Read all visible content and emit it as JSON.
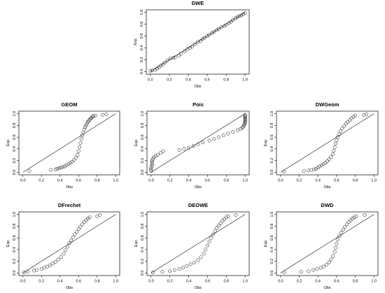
{
  "chart_data": [
    {
      "type": "scatter",
      "title": "DWE",
      "xlabel": "Obs",
      "ylabel": "Exp",
      "xlim": [
        0,
        1
      ],
      "ylim": [
        0,
        1
      ],
      "grid": false,
      "reference_line": "y = x",
      "xticks": [
        "0.0",
        "0.2",
        "0.4",
        "0.6",
        "0.8",
        "1.0"
      ],
      "yticks": [
        "0.0",
        "0.2",
        "0.4",
        "0.6",
        "0.8",
        "1.0"
      ],
      "points": [
        [
          0.0,
          0.01
        ],
        [
          0.02,
          0.02
        ],
        [
          0.05,
          0.03
        ],
        [
          0.07,
          0.05
        ],
        [
          0.09,
          0.07
        ],
        [
          0.11,
          0.1
        ],
        [
          0.13,
          0.12
        ],
        [
          0.15,
          0.15
        ],
        [
          0.18,
          0.19
        ],
        [
          0.21,
          0.22
        ],
        [
          0.24,
          0.23
        ],
        [
          0.26,
          0.24
        ],
        [
          0.3,
          0.27
        ],
        [
          0.32,
          0.3
        ],
        [
          0.36,
          0.34
        ],
        [
          0.39,
          0.38
        ],
        [
          0.42,
          0.4
        ],
        [
          0.44,
          0.42
        ],
        [
          0.47,
          0.46
        ],
        [
          0.5,
          0.5
        ],
        [
          0.53,
          0.52
        ],
        [
          0.55,
          0.55
        ],
        [
          0.57,
          0.57
        ],
        [
          0.6,
          0.6
        ],
        [
          0.62,
          0.62
        ],
        [
          0.65,
          0.65
        ],
        [
          0.67,
          0.67
        ],
        [
          0.7,
          0.7
        ],
        [
          0.72,
          0.72
        ],
        [
          0.75,
          0.75
        ],
        [
          0.78,
          0.77
        ],
        [
          0.8,
          0.79
        ],
        [
          0.83,
          0.82
        ],
        [
          0.85,
          0.84
        ],
        [
          0.87,
          0.87
        ],
        [
          0.9,
          0.9
        ],
        [
          0.92,
          0.92
        ],
        [
          0.94,
          0.94
        ],
        [
          0.96,
          0.95
        ],
        [
          0.98,
          0.97
        ],
        [
          1.0,
          0.99
        ]
      ]
    },
    {
      "type": "scatter",
      "title": "GEOM",
      "xlabel": "Obs",
      "ylabel": "Exp",
      "xlim": [
        0,
        1
      ],
      "ylim": [
        0,
        1
      ],
      "grid": false,
      "reference_line": "y = x",
      "xticks": [
        "0.0",
        "0.2",
        "0.4",
        "0.6",
        "0.8",
        "1.0"
      ],
      "yticks": [
        "0.0",
        "0.2",
        "0.4",
        "0.6",
        "0.8",
        "1.0"
      ],
      "points": [
        [
          0.07,
          0.02
        ],
        [
          0.3,
          0.04
        ],
        [
          0.35,
          0.05
        ],
        [
          0.37,
          0.06
        ],
        [
          0.39,
          0.07
        ],
        [
          0.41,
          0.08
        ],
        [
          0.43,
          0.09
        ],
        [
          0.45,
          0.1
        ],
        [
          0.47,
          0.12
        ],
        [
          0.49,
          0.14
        ],
        [
          0.51,
          0.16
        ],
        [
          0.53,
          0.18
        ],
        [
          0.55,
          0.21
        ],
        [
          0.57,
          0.25
        ],
        [
          0.59,
          0.3
        ],
        [
          0.6,
          0.36
        ],
        [
          0.61,
          0.43
        ],
        [
          0.62,
          0.5
        ],
        [
          0.63,
          0.57
        ],
        [
          0.64,
          0.63
        ],
        [
          0.65,
          0.68
        ],
        [
          0.66,
          0.73
        ],
        [
          0.67,
          0.77
        ],
        [
          0.68,
          0.8
        ],
        [
          0.69,
          0.83
        ],
        [
          0.7,
          0.86
        ],
        [
          0.71,
          0.88
        ],
        [
          0.72,
          0.9
        ],
        [
          0.73,
          0.92
        ],
        [
          0.74,
          0.93
        ],
        [
          0.75,
          0.95
        ],
        [
          0.76,
          0.96
        ],
        [
          0.78,
          0.97
        ],
        [
          0.86,
          0.98
        ],
        [
          0.9,
          0.99
        ]
      ]
    },
    {
      "type": "scatter",
      "title": "Pois",
      "xlabel": "Obs",
      "ylabel": "Exp",
      "xlim": [
        0,
        1
      ],
      "ylim": [
        0,
        1
      ],
      "grid": false,
      "reference_line": "y = x",
      "xticks": [
        "0.0",
        "0.2",
        "0.4",
        "0.6",
        "0.8",
        "1.0"
      ],
      "yticks": [
        "0.0",
        "0.2",
        "0.4",
        "0.6",
        "0.8",
        "1.0"
      ],
      "points": [
        [
          0.0,
          0.02
        ],
        [
          0.0,
          0.05
        ],
        [
          0.0,
          0.08
        ],
        [
          0.01,
          0.11
        ],
        [
          0.01,
          0.14
        ],
        [
          0.01,
          0.17
        ],
        [
          0.01,
          0.2
        ],
        [
          0.02,
          0.23
        ],
        [
          0.03,
          0.26
        ],
        [
          0.05,
          0.28
        ],
        [
          0.07,
          0.3
        ],
        [
          0.1,
          0.33
        ],
        [
          0.13,
          0.36
        ],
        [
          0.3,
          0.38
        ],
        [
          0.35,
          0.4
        ],
        [
          0.4,
          0.42
        ],
        [
          0.45,
          0.45
        ],
        [
          0.5,
          0.48
        ],
        [
          0.55,
          0.51
        ],
        [
          0.62,
          0.54
        ],
        [
          0.67,
          0.57
        ],
        [
          0.72,
          0.6
        ],
        [
          0.77,
          0.63
        ],
        [
          0.82,
          0.66
        ],
        [
          0.87,
          0.69
        ],
        [
          0.92,
          0.72
        ],
        [
          0.95,
          0.74
        ],
        [
          0.97,
          0.76
        ],
        [
          0.98,
          0.78
        ],
        [
          0.99,
          0.8
        ],
        [
          0.99,
          0.82
        ],
        [
          1.0,
          0.84
        ],
        [
          1.0,
          0.86
        ],
        [
          1.0,
          0.88
        ],
        [
          1.0,
          0.9
        ],
        [
          1.0,
          0.92
        ],
        [
          1.0,
          0.94
        ],
        [
          1.0,
          0.96
        ],
        [
          1.0,
          0.98
        ]
      ]
    },
    {
      "type": "scatter",
      "title": "DWGeom",
      "xlabel": "Obs",
      "ylabel": "Exp",
      "xlim": [
        0,
        1
      ],
      "ylim": [
        0,
        1
      ],
      "grid": false,
      "reference_line": "y = x",
      "xticks": [
        "0.0",
        "0.2",
        "0.4",
        "0.6",
        "0.8",
        "1.0"
      ],
      "yticks": [
        "0.0",
        "0.2",
        "0.4",
        "0.6",
        "0.8",
        "1.0"
      ],
      "points": [
        [
          0.04,
          0.01
        ],
        [
          0.25,
          0.02
        ],
        [
          0.3,
          0.03
        ],
        [
          0.33,
          0.04
        ],
        [
          0.36,
          0.05
        ],
        [
          0.38,
          0.06
        ],
        [
          0.4,
          0.08
        ],
        [
          0.42,
          0.1
        ],
        [
          0.44,
          0.12
        ],
        [
          0.46,
          0.14
        ],
        [
          0.48,
          0.16
        ],
        [
          0.5,
          0.19
        ],
        [
          0.52,
          0.22
        ],
        [
          0.54,
          0.26
        ],
        [
          0.56,
          0.31
        ],
        [
          0.57,
          0.37
        ],
        [
          0.58,
          0.43
        ],
        [
          0.59,
          0.49
        ],
        [
          0.6,
          0.55
        ],
        [
          0.61,
          0.6
        ],
        [
          0.63,
          0.65
        ],
        [
          0.64,
          0.7
        ],
        [
          0.66,
          0.75
        ],
        [
          0.68,
          0.79
        ],
        [
          0.7,
          0.83
        ],
        [
          0.72,
          0.86
        ],
        [
          0.74,
          0.89
        ],
        [
          0.76,
          0.92
        ],
        [
          0.78,
          0.95
        ],
        [
          0.8,
          0.97
        ],
        [
          0.89,
          0.98
        ],
        [
          0.92,
          0.99
        ]
      ]
    },
    {
      "type": "scatter",
      "title": "DFrechet",
      "xlabel": "Obs",
      "ylabel": "Exp",
      "xlim": [
        0,
        1
      ],
      "ylim": [
        0,
        1
      ],
      "grid": false,
      "reference_line": "y = x",
      "xticks": [
        "0.0",
        "0.2",
        "0.4",
        "0.6",
        "0.8",
        "1.0"
      ],
      "yticks": [
        "0.0",
        "0.2",
        "0.4",
        "0.6",
        "0.8",
        "1.0"
      ],
      "points": [
        [
          0.01,
          0.01
        ],
        [
          0.05,
          0.02
        ],
        [
          0.12,
          0.04
        ],
        [
          0.15,
          0.05
        ],
        [
          0.2,
          0.07
        ],
        [
          0.23,
          0.09
        ],
        [
          0.26,
          0.11
        ],
        [
          0.29,
          0.13
        ],
        [
          0.32,
          0.16
        ],
        [
          0.35,
          0.19
        ],
        [
          0.38,
          0.23
        ],
        [
          0.41,
          0.27
        ],
        [
          0.44,
          0.33
        ],
        [
          0.46,
          0.39
        ],
        [
          0.48,
          0.45
        ],
        [
          0.5,
          0.51
        ],
        [
          0.52,
          0.56
        ],
        [
          0.54,
          0.61
        ],
        [
          0.56,
          0.66
        ],
        [
          0.58,
          0.7
        ],
        [
          0.6,
          0.75
        ],
        [
          0.62,
          0.79
        ],
        [
          0.64,
          0.83
        ],
        [
          0.66,
          0.87
        ],
        [
          0.68,
          0.9
        ],
        [
          0.7,
          0.93
        ],
        [
          0.72,
          0.95
        ],
        [
          0.8,
          0.97
        ],
        [
          0.83,
          0.99
        ]
      ]
    },
    {
      "type": "scatter",
      "title": "DEOWE",
      "xlabel": "Obs",
      "ylabel": "Exp",
      "xlim": [
        0,
        1
      ],
      "ylim": [
        0,
        1
      ],
      "grid": false,
      "reference_line": "y = x",
      "xticks": [
        "0.0",
        "0.2",
        "0.4",
        "0.6",
        "0.8",
        "1.0"
      ],
      "yticks": [
        "0.0",
        "0.2",
        "0.4",
        "0.6",
        "0.8",
        "1.0"
      ],
      "points": [
        [
          0.02,
          0.01
        ],
        [
          0.12,
          0.02
        ],
        [
          0.2,
          0.03
        ],
        [
          0.25,
          0.05
        ],
        [
          0.3,
          0.07
        ],
        [
          0.34,
          0.09
        ],
        [
          0.38,
          0.12
        ],
        [
          0.42,
          0.15
        ],
        [
          0.46,
          0.18
        ],
        [
          0.5,
          0.22
        ],
        [
          0.53,
          0.27
        ],
        [
          0.56,
          0.33
        ],
        [
          0.58,
          0.4
        ],
        [
          0.6,
          0.47
        ],
        [
          0.62,
          0.54
        ],
        [
          0.64,
          0.6
        ],
        [
          0.66,
          0.66
        ],
        [
          0.68,
          0.72
        ],
        [
          0.7,
          0.77
        ],
        [
          0.72,
          0.81
        ],
        [
          0.74,
          0.85
        ],
        [
          0.76,
          0.89
        ],
        [
          0.78,
          0.92
        ],
        [
          0.8,
          0.95
        ],
        [
          0.82,
          0.97
        ],
        [
          0.9,
          0.99
        ]
      ]
    },
    {
      "type": "scatter",
      "title": "DWD",
      "xlabel": "Obs",
      "ylabel": "Exp",
      "xlim": [
        0,
        1
      ],
      "ylim": [
        0,
        1
      ],
      "grid": false,
      "reference_line": "y = x",
      "xticks": [
        "0.0",
        "0.2",
        "0.4",
        "0.6",
        "0.8",
        "1.0"
      ],
      "yticks": [
        "0.0",
        "0.2",
        "0.4",
        "0.6",
        "0.8",
        "1.0"
      ],
      "points": [
        [
          0.04,
          0.01
        ],
        [
          0.22,
          0.02
        ],
        [
          0.3,
          0.03
        ],
        [
          0.35,
          0.05
        ],
        [
          0.39,
          0.07
        ],
        [
          0.43,
          0.09
        ],
        [
          0.46,
          0.11
        ],
        [
          0.49,
          0.14
        ],
        [
          0.52,
          0.18
        ],
        [
          0.54,
          0.23
        ],
        [
          0.56,
          0.29
        ],
        [
          0.58,
          0.36
        ],
        [
          0.59,
          0.43
        ],
        [
          0.6,
          0.5
        ],
        [
          0.61,
          0.57
        ],
        [
          0.63,
          0.63
        ],
        [
          0.65,
          0.69
        ],
        [
          0.67,
          0.74
        ],
        [
          0.69,
          0.79
        ],
        [
          0.71,
          0.83
        ],
        [
          0.73,
          0.87
        ],
        [
          0.75,
          0.9
        ],
        [
          0.77,
          0.93
        ],
        [
          0.79,
          0.95
        ],
        [
          0.81,
          0.97
        ],
        [
          0.9,
          0.99
        ]
      ]
    }
  ]
}
